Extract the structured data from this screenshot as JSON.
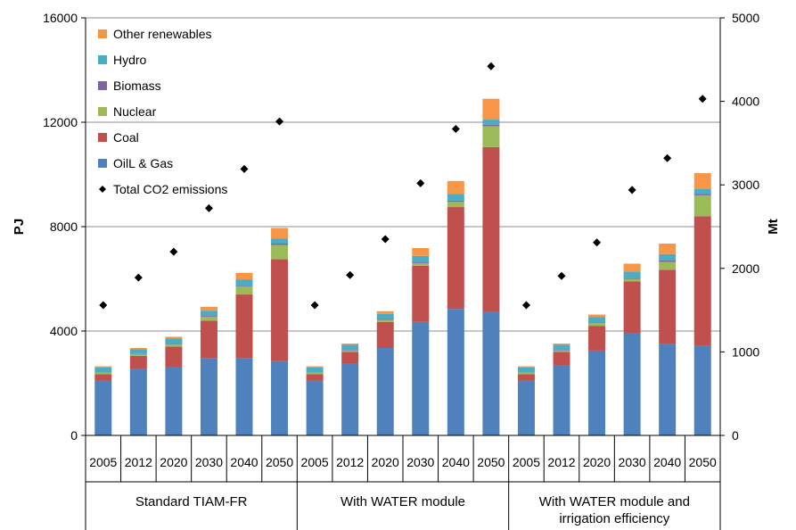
{
  "chart_data": {
    "type": "bar",
    "stacked": true,
    "groups": [
      {
        "label": "Standard TIAM-FR"
      },
      {
        "label": "With WATER module"
      },
      {
        "label": "With WATER module and",
        "label2": "irrigation efficiency"
      }
    ],
    "categories": [
      "2005",
      "2012",
      "2020",
      "2030",
      "2040",
      "2050",
      "2005",
      "2012",
      "2020",
      "2030",
      "2040",
      "2050",
      "2005",
      "2012",
      "2020",
      "2030",
      "2040",
      "2050"
    ],
    "series": [
      {
        "name": "OilL & Gas",
        "color": "#4F81BD",
        "values": [
          2100,
          2550,
          2600,
          2950,
          2950,
          2850,
          2100,
          2750,
          3350,
          4350,
          4850,
          4750,
          2100,
          2700,
          3250,
          3900,
          3500,
          3450
        ]
      },
      {
        "name": "Coal",
        "color": "#C0504D",
        "values": [
          250,
          500,
          800,
          1450,
          2450,
          3900,
          250,
          450,
          1000,
          2150,
          3900,
          6300,
          250,
          500,
          950,
          2000,
          2850,
          4950
        ]
      },
      {
        "name": "Nuclear",
        "color": "#9BBB59",
        "values": [
          50,
          50,
          80,
          150,
          300,
          550,
          50,
          50,
          80,
          100,
          200,
          800,
          50,
          50,
          100,
          100,
          300,
          800
        ]
      },
      {
        "name": "Biomass",
        "color": "#8064A2",
        "values": [
          20,
          20,
          30,
          30,
          30,
          50,
          20,
          20,
          30,
          30,
          50,
          50,
          20,
          20,
          30,
          30,
          50,
          50
        ]
      },
      {
        "name": "Hydro",
        "color": "#4BACC6",
        "values": [
          180,
          180,
          200,
          200,
          250,
          200,
          180,
          200,
          200,
          250,
          250,
          200,
          180,
          200,
          200,
          250,
          250,
          200
        ]
      },
      {
        "name": "Other renewables",
        "color": "#F79646",
        "values": [
          50,
          50,
          70,
          150,
          250,
          400,
          50,
          50,
          100,
          300,
          500,
          800,
          50,
          50,
          100,
          300,
          400,
          600
        ]
      }
    ],
    "emissions": {
      "name": "Total CO2 emissions",
      "color": "#000000",
      "values": [
        1560,
        1890,
        2200,
        2720,
        3190,
        3760,
        1560,
        1920,
        2350,
        3020,
        3670,
        4420,
        1560,
        1910,
        2310,
        2940,
        3320,
        4030
      ]
    },
    "yleft": {
      "label": "PJ",
      "min": 0,
      "max": 16000,
      "ticks": [
        "0",
        "4000",
        "8000",
        "12000",
        "16000"
      ]
    },
    "yright": {
      "label": "Mt",
      "min": 0,
      "max": 5000,
      "ticks": [
        "0",
        "1000",
        "2000",
        "3000",
        "4000",
        "5000"
      ]
    },
    "legend_position": "top-left",
    "grid": true
  }
}
